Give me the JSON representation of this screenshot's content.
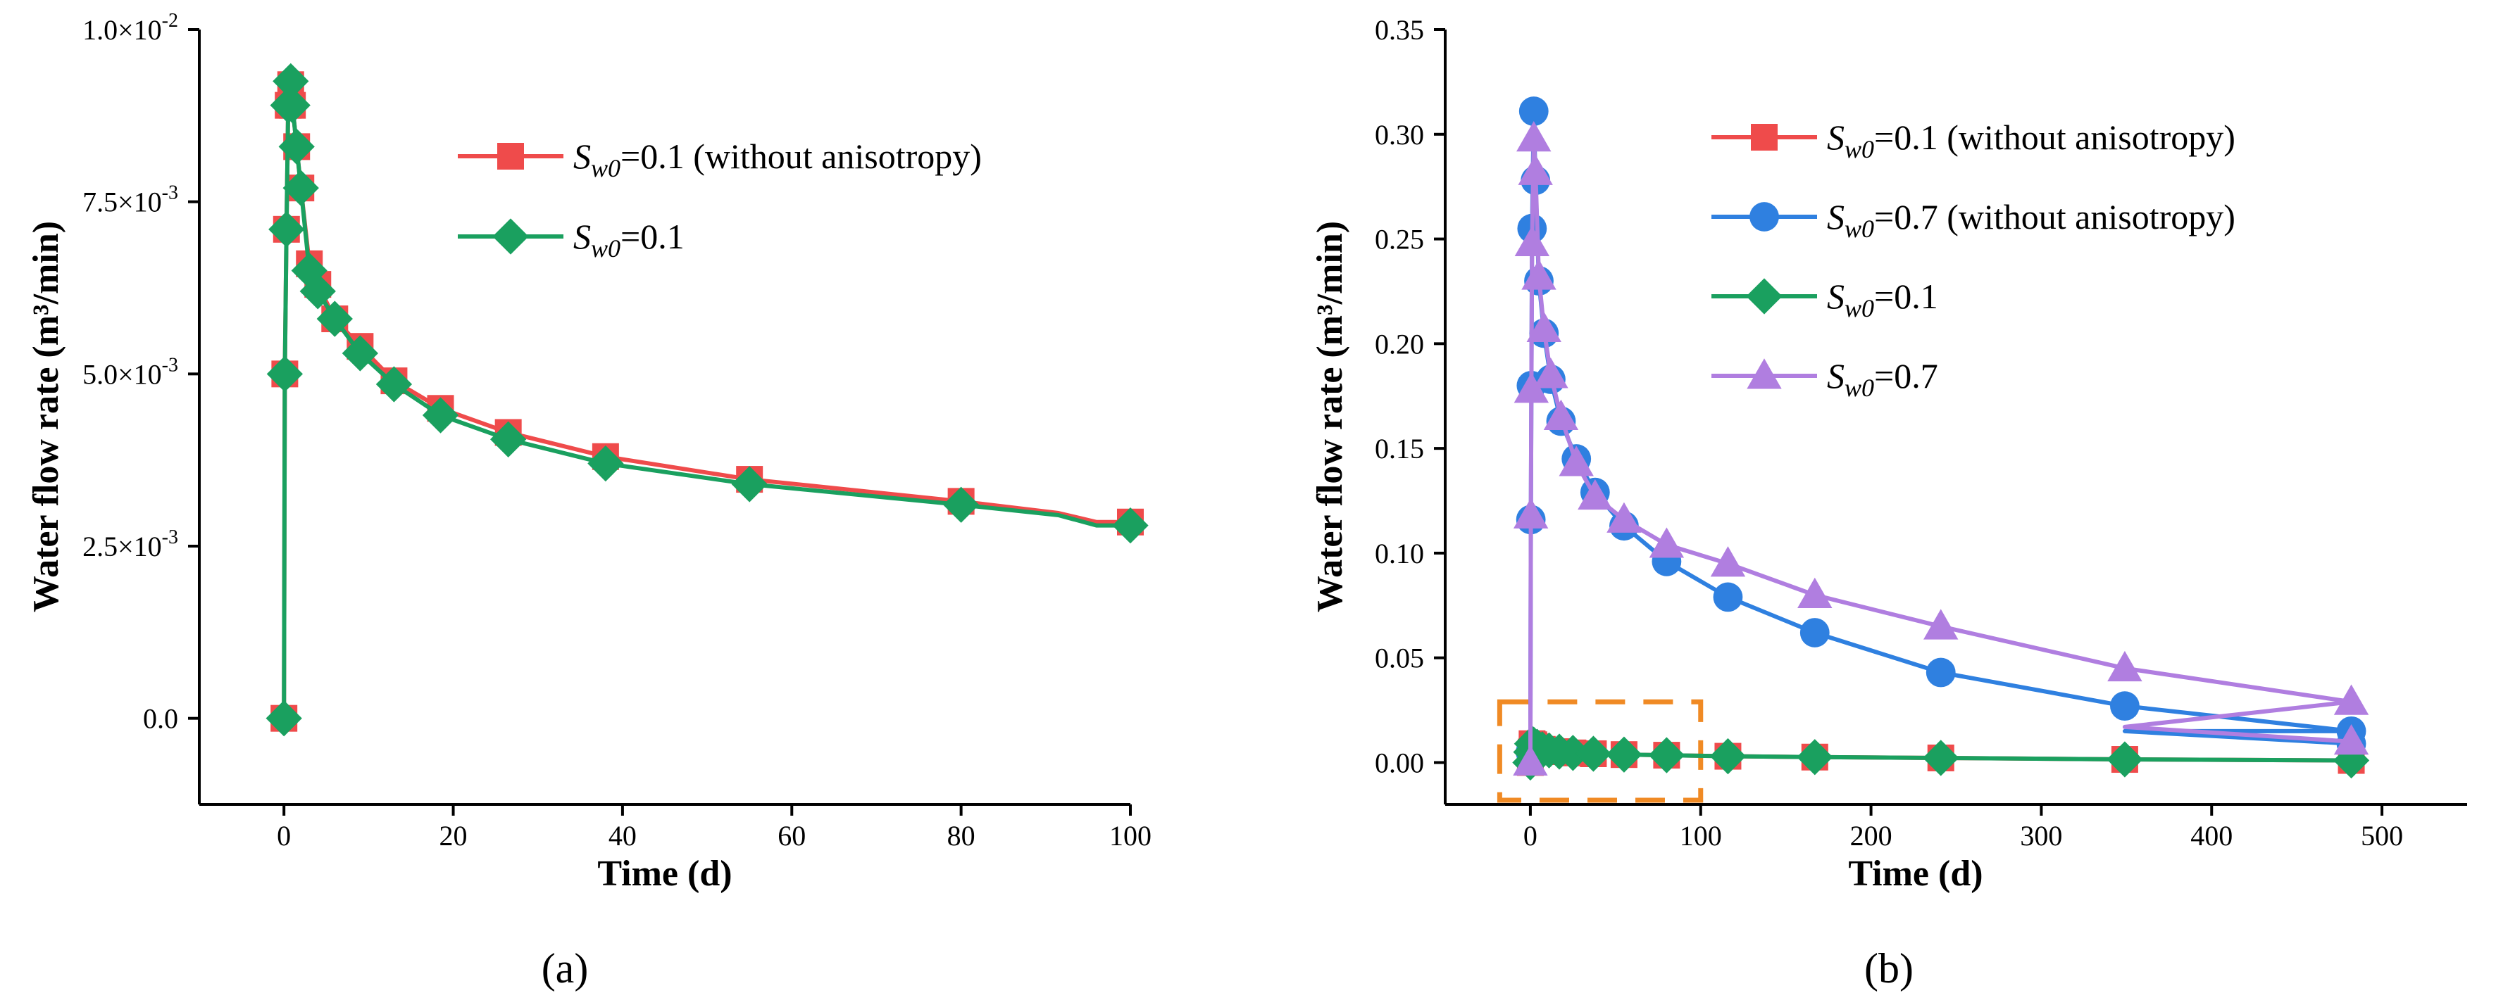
{
  "chart_data": [
    {
      "id": "a",
      "type": "line",
      "panel_label": "(a)",
      "xlabel": "Time (d)",
      "ylabel": "Water flow rate (m³/min)",
      "xlim": [
        -10,
        100
      ],
      "ylim": [
        -0.00125,
        0.01
      ],
      "xticks": [
        0,
        20,
        40,
        60,
        80,
        100
      ],
      "xtick_labels": [
        "0",
        "20",
        "40",
        "60",
        "80",
        "100"
      ],
      "yticks": [
        0,
        0.0025,
        0.005,
        0.0075,
        0.01
      ],
      "ytick_labels": [
        {
          "mant": "0.0",
          "exp": ""
        },
        {
          "mant": "2.5×10",
          "exp": "-3"
        },
        {
          "mant": "5.0×10",
          "exp": "-3"
        },
        {
          "mant": "7.5×10",
          "exp": "-3"
        },
        {
          "mant": "1.0×10",
          "exp": "-2"
        }
      ],
      "legend_position": "top-right",
      "series": [
        {
          "name": "Sw0=0.1 (without anisotropy)",
          "legend_sub": "w0",
          "legend_rest": "=0.1 (without anisotropy)",
          "color": "#ef4b4b",
          "marker": "square",
          "x": [
            0,
            0.1,
            0.3,
            0.5,
            0.8,
            1,
            1.5,
            2,
            3,
            4,
            6,
            9,
            13,
            18.5,
            26.5,
            38,
            55,
            80,
            91.5,
            96,
            100
          ],
          "y": [
            0,
            0.005,
            0.0071,
            0.0089,
            0.0092,
            0.0089,
            0.0083,
            0.0077,
            0.0066,
            0.0063,
            0.0058,
            0.0054,
            0.0049,
            0.0045,
            0.00415,
            0.0038,
            0.00347,
            0.00315,
            0.00298,
            0.00285,
            0.00285
          ],
          "marker_x": [
            0,
            0.1,
            0.3,
            0.5,
            0.8,
            1,
            1.5,
            2,
            3,
            4,
            6,
            9,
            13,
            18.5,
            26.5,
            38,
            55,
            80,
            100
          ],
          "marker_y": [
            0,
            0.005,
            0.0071,
            0.0089,
            0.0092,
            0.0089,
            0.0083,
            0.0077,
            0.0066,
            0.0063,
            0.0058,
            0.0054,
            0.0049,
            0.0045,
            0.00415,
            0.0038,
            0.00347,
            0.00315,
            0.00285
          ]
        },
        {
          "name": "Sw0=0.1",
          "legend_sub": "w0",
          "legend_rest": "=0.1",
          "color": "#1aa05f",
          "marker": "diamond",
          "x": [
            0,
            0.1,
            0.3,
            0.5,
            0.8,
            1,
            1.5,
            2,
            3,
            4,
            6,
            9,
            13,
            18.5,
            26.5,
            38,
            55,
            80,
            91.5,
            96,
            100
          ],
          "y": [
            0,
            0.005,
            0.0071,
            0.0089,
            0.00925,
            0.0089,
            0.0083,
            0.0077,
            0.0065,
            0.0062,
            0.0058,
            0.0053,
            0.00485,
            0.0044,
            0.00405,
            0.0037,
            0.0034,
            0.0031,
            0.00295,
            0.0028,
            0.0028
          ],
          "marker_x": [
            0,
            0.1,
            0.3,
            0.5,
            0.8,
            1,
            1.5,
            2,
            3,
            4,
            6,
            9,
            13,
            18.5,
            26.5,
            38,
            55,
            80,
            100
          ],
          "marker_y": [
            0,
            0.005,
            0.0071,
            0.0089,
            0.00925,
            0.0089,
            0.0083,
            0.0077,
            0.0065,
            0.0062,
            0.0058,
            0.0053,
            0.00485,
            0.0044,
            0.00405,
            0.0037,
            0.0034,
            0.0031,
            0.0028
          ]
        }
      ]
    },
    {
      "id": "b",
      "type": "line",
      "panel_label": "(b)",
      "xlabel": "Time (d)",
      "ylabel": "Water flow rate (m³/min)",
      "xlim": [
        -50,
        550
      ],
      "ylim": [
        -0.02,
        0.35
      ],
      "xticks": [
        0,
        100,
        200,
        300,
        400,
        500
      ],
      "xtick_labels": [
        "0",
        "100",
        "200",
        "300",
        "400",
        "500"
      ],
      "yticks": [
        0,
        0.05,
        0.1,
        0.15,
        0.2,
        0.25,
        0.3,
        0.35
      ],
      "ytick_labels": [
        "0.00",
        "0.05",
        "0.10",
        "0.15",
        "0.20",
        "0.25",
        "0.30",
        "0.35"
      ],
      "legend_position": "top-right",
      "annotation": {
        "type": "dashed-box",
        "color": "#f08a24",
        "x_range": [
          -18,
          100
        ],
        "y_range": [
          -0.018,
          0.029
        ]
      },
      "series": [
        {
          "name": "Sw0=0.1 (without anisotropy)",
          "legend_sub": "w0",
          "legend_rest": "=0.1 (without anisotropy)",
          "color": "#ef4b4b",
          "marker": "square",
          "x": [
            0,
            0.5,
            1,
            2,
            4,
            7,
            11,
            17,
            25,
            37,
            55,
            80,
            116,
            167,
            241,
            349,
            482
          ],
          "y": [
            0,
            0.005,
            0.009,
            0.0085,
            0.0075,
            0.0063,
            0.0058,
            0.0052,
            0.0046,
            0.0042,
            0.0038,
            0.0035,
            0.003,
            0.0026,
            0.0022,
            0.0015,
            0.001
          ]
        },
        {
          "name": "Sw0=0.7 (without anisotropy)",
          "legend_sub": "w0",
          "legend_rest": "=0.7 (without anisotropy)",
          "color": "#2f80e0",
          "marker": "circle",
          "x": [
            0,
            0.3,
            0.6,
            1,
            2,
            3,
            5,
            8,
            12,
            18,
            27,
            38,
            55,
            80,
            116,
            167,
            241,
            349,
            482
          ],
          "y": [
            0.005,
            0.116,
            0.18,
            0.255,
            0.311,
            0.278,
            0.23,
            0.205,
            0.183,
            0.163,
            0.145,
            0.129,
            0.113,
            0.096,
            0.079,
            0.062,
            0.043,
            0.027,
            0.015
          ],
          "post_x": [
            349,
            482
          ],
          "post_y": [
            0.015,
            0.009
          ]
        },
        {
          "name": "Sw0=0.1",
          "legend_sub": "w0",
          "legend_rest": "=0.1",
          "color": "#1aa05f",
          "marker": "diamond",
          "x": [
            0,
            0.5,
            1,
            2,
            4,
            7,
            11,
            17,
            25,
            37,
            55,
            80,
            116,
            167,
            241,
            349,
            482
          ],
          "y": [
            0,
            0.005,
            0.009,
            0.0085,
            0.0075,
            0.0063,
            0.0058,
            0.0052,
            0.0046,
            0.0042,
            0.0038,
            0.0035,
            0.003,
            0.0026,
            0.0022,
            0.0015,
            0.001
          ]
        },
        {
          "name": "Sw0=0.7",
          "legend_sub": "w0",
          "legend_rest": "=0.7",
          "color": "#b07ee0",
          "marker": "triangle",
          "x": [
            0,
            0.3,
            0.6,
            1,
            2,
            3,
            5,
            8,
            12,
            18,
            27,
            38,
            55,
            80,
            116,
            167,
            241,
            349,
            482
          ],
          "y": [
            0,
            0.118,
            0.178,
            0.248,
            0.298,
            0.282,
            0.232,
            0.207,
            0.185,
            0.165,
            0.143,
            0.127,
            0.116,
            0.104,
            0.095,
            0.08,
            0.065,
            0.045,
            0.029
          ],
          "post_x": [
            349,
            482
          ],
          "post_y": [
            0.017,
            0.01
          ]
        }
      ]
    }
  ]
}
